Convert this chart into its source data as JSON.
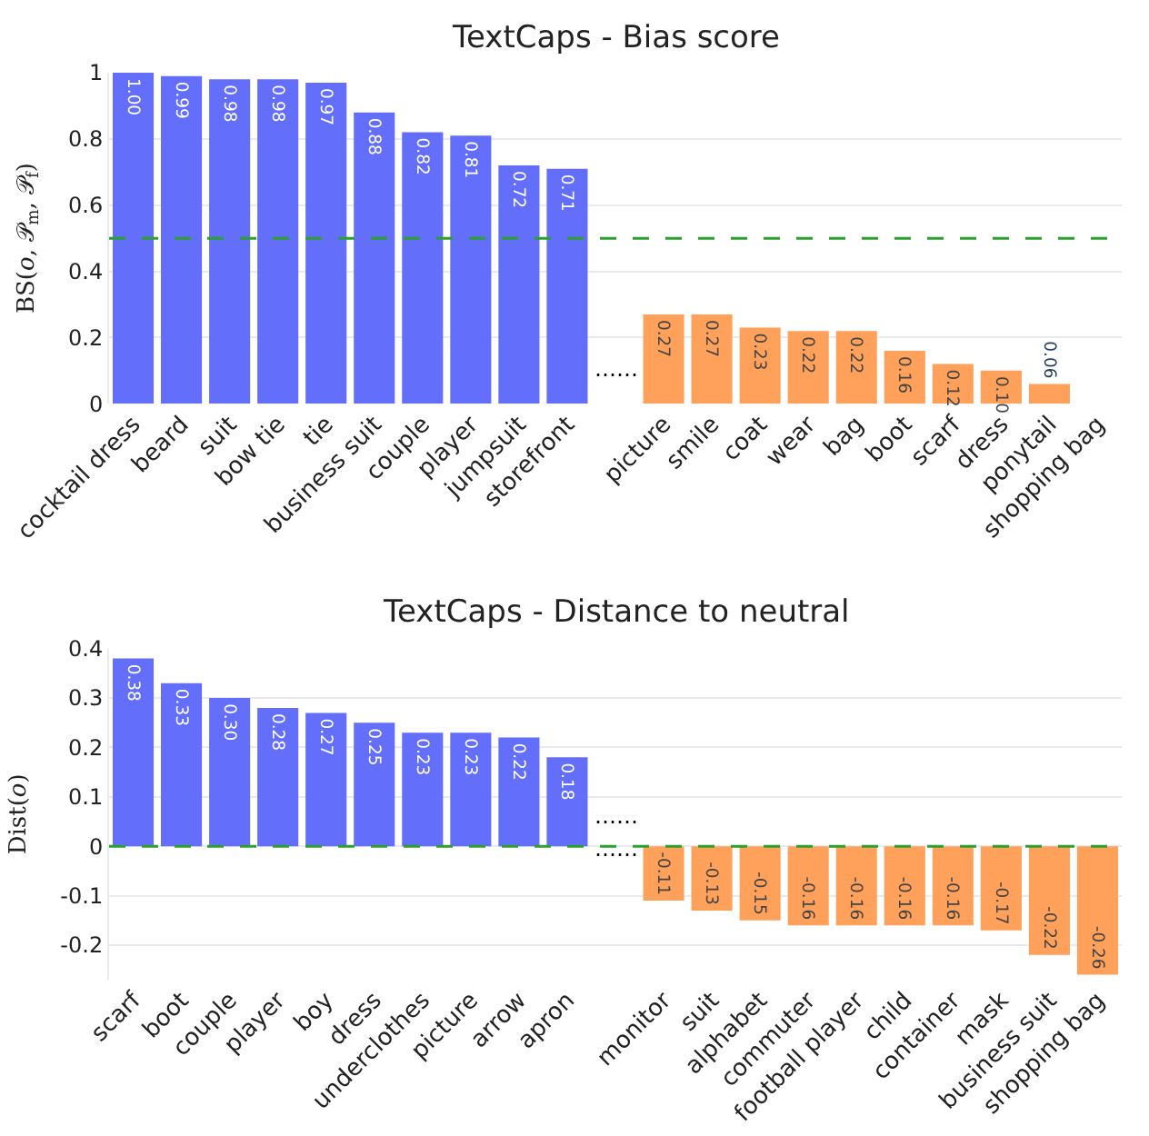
{
  "chart_data": [
    {
      "type": "bar",
      "title": "TextCaps - Bias score",
      "ylabel": "BS(𝑜, 𝒫$_{m}$, 𝒫$_{f}$)",
      "categories": [
        "cocktail dress",
        "beard",
        "suit",
        "bow tie",
        "tie",
        "business suit",
        "couple",
        "player",
        "jumpsuit",
        "storefront",
        null,
        "picture",
        "smile",
        "coat",
        "wear",
        "bag",
        "boot",
        "scarf",
        "dress",
        "ponytail",
        "shopping bag"
      ],
      "values": [
        1.0,
        0.99,
        0.98,
        0.98,
        0.97,
        0.88,
        0.82,
        0.81,
        0.72,
        0.71,
        null,
        0.27,
        0.27,
        0.23,
        0.22,
        0.22,
        0.16,
        0.12,
        0.1,
        0.06,
        null
      ],
      "value_labels": [
        "1.00",
        "0.99",
        "0.98",
        "0.98",
        "0.97",
        "0.88",
        "0.82",
        "0.81",
        "0.72",
        "0.71",
        null,
        "0.27",
        "0.27",
        "0.23",
        "0.22",
        "0.22",
        "0.16",
        "0.12",
        "0.10",
        "0.06",
        null
      ],
      "colors": [
        "#636efa",
        "#636efa",
        "#636efa",
        "#636efa",
        "#636efa",
        "#636efa",
        "#636efa",
        "#636efa",
        "#636efa",
        "#636efa",
        null,
        "#ffa15a",
        "#ffa15a",
        "#ffa15a",
        "#ffa15a",
        "#ffa15a",
        "#ffa15a",
        "#ffa15a",
        "#ffa15a",
        "#ffa15a",
        "#ffa15a"
      ],
      "ylim": [
        0,
        1
      ],
      "yticks": [
        0,
        0.2,
        0.4,
        0.6,
        0.8,
        1
      ],
      "grid": "y",
      "ref_lines": [
        {
          "axis": "y",
          "value": 0.5,
          "color": "#2ca02c",
          "line_style": "dashed"
        }
      ],
      "annotations": [
        "⋯⋯"
      ]
    },
    {
      "type": "bar",
      "title": "TextCaps - Distance to neutral",
      "ylabel": "Dist(𝑜)",
      "categories": [
        "scarf",
        "boot",
        "couple",
        "player",
        "boy",
        "dress",
        "underclothes",
        "picture",
        "arrow",
        "apron",
        null,
        "monitor",
        "suit",
        "alphabet",
        "commuter",
        "football player",
        "child",
        "container",
        "mask",
        "business suit",
        "shopping bag"
      ],
      "values": [
        0.38,
        0.33,
        0.3,
        0.28,
        0.27,
        0.25,
        0.23,
        0.23,
        0.22,
        0.18,
        null,
        -0.11,
        -0.13,
        -0.15,
        -0.16,
        -0.16,
        -0.16,
        -0.16,
        -0.17,
        -0.22,
        -0.26
      ],
      "value_labels": [
        "0.38",
        "0.33",
        "0.30",
        "0.28",
        "0.27",
        "0.25",
        "0.23",
        "0.23",
        "0.22",
        "0.18",
        null,
        "-0.11",
        "-0.13",
        "-0.15",
        "-0.16",
        "-0.16",
        "-0.16",
        "-0.16",
        "-0.17",
        "-0.22",
        "-0.26"
      ],
      "colors": [
        "#636efa",
        "#636efa",
        "#636efa",
        "#636efa",
        "#636efa",
        "#636efa",
        "#636efa",
        "#636efa",
        "#636efa",
        "#636efa",
        null,
        "#ffa15a",
        "#ffa15a",
        "#ffa15a",
        "#ffa15a",
        "#ffa15a",
        "#ffa15a",
        "#ffa15a",
        "#ffa15a",
        "#ffa15a",
        "#ffa15a"
      ],
      "ylim": [
        -0.27,
        0.4
      ],
      "yticks": [
        -0.2,
        -0.1,
        0,
        0.1,
        0.2,
        0.3,
        0.4
      ],
      "grid": "y",
      "ref_lines": [
        {
          "axis": "y",
          "value": 0,
          "color": "#2ca02c",
          "line_style": "dashed"
        }
      ],
      "annotations": [
        "⋯⋯",
        "⋯⋯"
      ]
    }
  ]
}
